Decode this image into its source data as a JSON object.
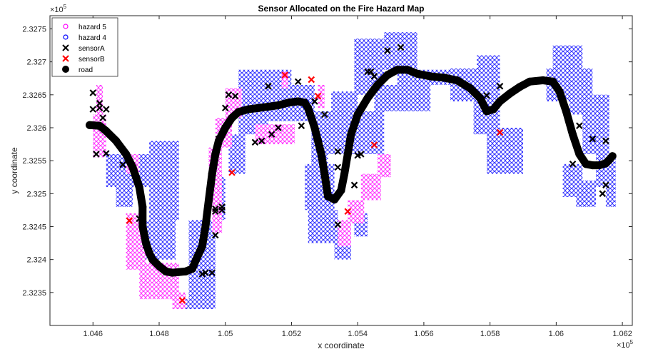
{
  "chart_data": {
    "type": "scatter",
    "title": "Sensor Allocated on the Fire Hazard Map",
    "xlabel": "x coordinate",
    "ylabel": "y coordinate",
    "x_exponent_label": "×10^5",
    "y_exponent_label": "×10^5",
    "xlim": [
      1.0447,
      1.0623
    ],
    "ylim": [
      2.323,
      2.3277
    ],
    "x_ticks": [
      1.046,
      1.048,
      1.05,
      1.052,
      1.054,
      1.056,
      1.058,
      1.06,
      1.062
    ],
    "x_tick_labels": [
      "1.046",
      "1.048",
      "1.05",
      "1.052",
      "1.054",
      "1.056",
      "1.058",
      "1.06",
      "1.062"
    ],
    "y_ticks": [
      2.3235,
      2.324,
      2.3245,
      2.325,
      2.3255,
      2.326,
      2.3265,
      2.327,
      2.3275
    ],
    "y_tick_labels": [
      "2.3235",
      "2.324",
      "2.3245",
      "2.325",
      "2.3255",
      "2.326",
      "2.3265",
      "2.327",
      "2.3275"
    ],
    "grid": false,
    "legend_position": "top-left",
    "colors": {
      "hazard5": "#ff00ff",
      "hazard4": "#0000ff",
      "sensorA": "#000000",
      "sensorB": "#ff0000",
      "road": "#000000"
    },
    "hazard_regions": {
      "hazard5": [
        [
          [
            1.046,
            2.32555
          ],
          [
            1.0464,
            2.3262
          ]
        ],
        [
          [
            1.0461,
            2.3262
          ],
          [
            1.0463,
            2.32665
          ]
        ],
        [
          [
            1.047,
            2.3253
          ],
          [
            1.0474,
            2.3256
          ]
        ],
        [
          [
            1.047,
            2.32385
          ],
          [
            1.0476,
            2.3247
          ]
        ],
        [
          [
            1.0474,
            2.3234
          ],
          [
            1.0486,
            2.32395
          ]
        ],
        [
          [
            1.0484,
            2.32325
          ],
          [
            1.0488,
            2.3235
          ]
        ],
        [
          [
            1.0496,
            2.3244
          ],
          [
            1.0499,
            2.325
          ]
        ],
        [
          [
            1.0495,
            2.325
          ],
          [
            1.0499,
            2.3257
          ]
        ],
        [
          [
            1.0497,
            2.3257
          ],
          [
            1.0502,
            2.32615
          ]
        ],
        [
          [
            1.05,
            2.32615
          ],
          [
            1.0505,
            2.3266
          ]
        ],
        [
          [
            1.0517,
            2.3266
          ],
          [
            1.0519,
            2.32685
          ]
        ],
        [
          [
            1.0528,
            2.3263
          ],
          [
            1.053,
            2.32665
          ]
        ],
        [
          [
            1.0509,
            2.32575
          ],
          [
            1.0521,
            2.32605
          ]
        ],
        [
          [
            1.0546,
            2.32525
          ],
          [
            1.055,
            2.3256
          ]
        ],
        [
          [
            1.0541,
            2.3249
          ],
          [
            1.0547,
            2.3253
          ]
        ],
        [
          [
            1.0537,
            2.32455
          ],
          [
            1.0542,
            2.3249
          ]
        ],
        [
          [
            1.0534,
            2.3242
          ],
          [
            1.0538,
            2.3246
          ]
        ]
      ],
      "hazard4": [
        [
          [
            1.0504,
            2.3259
          ],
          [
            1.0513,
            2.32645
          ]
        ],
        [
          [
            1.0504,
            2.32645
          ],
          [
            1.052,
            2.32688
          ]
        ],
        [
          [
            1.0501,
            2.3253
          ],
          [
            1.0506,
            2.3259
          ]
        ],
        [
          [
            1.0497,
            2.3246
          ],
          [
            1.05,
            2.32525
          ]
        ],
        [
          [
            1.0489,
            2.32325
          ],
          [
            1.0497,
            2.3246
          ]
        ],
        [
          [
            1.0485,
            2.32325
          ],
          [
            1.0489,
            2.3234
          ]
        ],
        [
          [
            1.0477,
            2.3246
          ],
          [
            1.0486,
            2.3258
          ]
        ],
        [
          [
            1.0475,
            2.324
          ],
          [
            1.0485,
            2.3246
          ]
        ],
        [
          [
            1.0464,
            2.3251
          ],
          [
            1.0479,
            2.3256
          ]
        ],
        [
          [
            1.0467,
            2.3248
          ],
          [
            1.0472,
            2.3251
          ]
        ],
        [
          [
            1.0505,
            2.3261
          ],
          [
            1.0521,
            2.3266
          ]
        ],
        [
          [
            1.0519,
            2.3261
          ],
          [
            1.0527,
            2.32665
          ]
        ],
        [
          [
            1.0526,
            2.32545
          ],
          [
            1.0531,
            2.32625
          ]
        ],
        [
          [
            1.0533,
            2.324
          ],
          [
            1.0538,
            2.3244
          ]
        ],
        [
          [
            1.0539,
            2.32435
          ],
          [
            1.0543,
            2.3247
          ]
        ],
        [
          [
            1.0525,
            2.32425
          ],
          [
            1.0534,
            2.32475
          ]
        ],
        [
          [
            1.0524,
            2.32475
          ],
          [
            1.0533,
            2.32545
          ]
        ],
        [
          [
            1.053,
            2.3256
          ],
          [
            1.0548,
            2.32625
          ]
        ],
        [
          [
            1.0545,
            2.32625
          ],
          [
            1.0562,
            2.32665
          ]
        ],
        [
          [
            1.0552,
            2.32665
          ],
          [
            1.0578,
            2.32688
          ]
        ],
        [
          [
            1.0548,
            2.32688
          ],
          [
            1.0558,
            2.32745
          ]
        ],
        [
          [
            1.0539,
            2.3265
          ],
          [
            1.0548,
            2.32735
          ]
        ],
        [
          [
            1.0532,
            2.32615
          ],
          [
            1.054,
            2.32655
          ]
        ],
        [
          [
            1.0568,
            2.3264
          ],
          [
            1.0578,
            2.3269
          ]
        ],
        [
          [
            1.0575,
            2.3259
          ],
          [
            1.0583,
            2.3269
          ]
        ],
        [
          [
            1.0579,
            2.3253
          ],
          [
            1.059,
            2.326
          ]
        ],
        [
          [
            1.0576,
            2.3266
          ],
          [
            1.0583,
            2.3271
          ]
        ],
        [
          [
            1.0597,
            2.3264
          ],
          [
            1.0604,
            2.3269
          ]
        ],
        [
          [
            1.0599,
            2.3269
          ],
          [
            1.0608,
            2.32725
          ]
        ],
        [
          [
            1.0604,
            2.3262
          ],
          [
            1.0611,
            2.3269
          ]
        ],
        [
          [
            1.0608,
            2.3256
          ],
          [
            1.0616,
            2.3265
          ]
        ],
        [
          [
            1.0612,
            2.3251
          ],
          [
            1.0618,
            2.3256
          ]
        ],
        [
          [
            1.0602,
            2.32495
          ],
          [
            1.0608,
            2.32545
          ]
        ],
        [
          [
            1.0606,
            2.3248
          ],
          [
            1.0612,
            2.3252
          ]
        ],
        [
          [
            1.0615,
            2.3248
          ],
          [
            1.0618,
            2.3252
          ]
        ]
      ]
    },
    "series": [
      {
        "name": "hazard 5",
        "marker": "o",
        "color": "#ff00ff"
      },
      {
        "name": "hazard 4",
        "marker": "o",
        "color": "#0000ff"
      },
      {
        "name": "sensorA",
        "marker": "x",
        "color": "#000000",
        "x": [
          1.046,
          1.046,
          1.0461,
          1.0462,
          1.0462,
          1.0463,
          1.0464,
          1.0464,
          1.0469,
          1.0474,
          1.0476,
          1.0493,
          1.0494,
          1.0496,
          1.0497,
          1.0497,
          1.0497,
          1.0499,
          1.0499,
          1.05,
          1.0498,
          1.05,
          1.0503,
          1.0501,
          1.0509,
          1.0511,
          1.0513,
          1.0514,
          1.0516,
          1.0522,
          1.0523,
          1.0527,
          1.053,
          1.0534,
          1.0534,
          1.0534,
          1.0539,
          1.054,
          1.0541,
          1.0543,
          1.0544,
          1.0545,
          1.0549,
          1.0553,
          1.0579,
          1.0583,
          1.0607,
          1.0611,
          1.0614,
          1.0615,
          1.0615,
          1.0605
        ],
        "y": [
          2.32653,
          2.32628,
          2.3256,
          2.3263,
          2.32637,
          2.32615,
          2.32561,
          2.32628,
          2.32544,
          2.32462,
          2.32422,
          2.32378,
          2.3238,
          2.3238,
          2.32437,
          2.32477,
          2.32473,
          2.32475,
          2.3248,
          2.326,
          2.32583,
          2.3263,
          2.32648,
          2.3265,
          2.32578,
          2.3258,
          2.32663,
          2.3259,
          2.326,
          2.3267,
          2.32603,
          2.3264,
          2.3262,
          2.32453,
          2.32564,
          2.3254,
          2.32513,
          2.32558,
          2.3256,
          2.32685,
          2.32685,
          2.32678,
          2.32717,
          2.32722,
          2.32649,
          2.32663,
          2.32603,
          2.32583,
          2.325,
          2.32513,
          2.3258,
          2.32545
        ]
      },
      {
        "name": "sensorB",
        "marker": "x",
        "color": "#ff0000",
        "x": [
          1.0471,
          1.0487,
          1.0502,
          1.0518,
          1.0526,
          1.0528,
          1.0537,
          1.0545,
          1.0583
        ],
        "y": [
          2.32459,
          2.32338,
          2.32532,
          2.3268,
          2.32673,
          2.32648,
          2.32473,
          2.32574,
          2.32593
        ]
      },
      {
        "name": "road",
        "marker": "o",
        "color": "#000000",
        "x": [
          1.0459,
          1.0462,
          1.0464,
          1.0467,
          1.047,
          1.0472,
          1.0474,
          1.0475,
          1.0475,
          1.0476,
          1.0477,
          1.0478,
          1.048,
          1.0482,
          1.0484,
          1.0486,
          1.0488,
          1.049,
          1.0491,
          1.0493,
          1.0494,
          1.0495,
          1.0496,
          1.0497,
          1.0498,
          1.05,
          1.0502,
          1.0504,
          1.0507,
          1.051,
          1.0513,
          1.0516,
          1.0519,
          1.0522,
          1.0524,
          1.0525,
          1.0526,
          1.0527,
          1.0528,
          1.0529,
          1.053,
          1.0531,
          1.0533,
          1.0535,
          1.0536,
          1.0537,
          1.0538,
          1.054,
          1.0543,
          1.0546,
          1.0549,
          1.0552,
          1.0555,
          1.0558,
          1.0562,
          1.0566,
          1.057,
          1.0574,
          1.0577,
          1.0579,
          1.0581,
          1.0583,
          1.0586,
          1.0589,
          1.0592,
          1.0596,
          1.0599,
          1.0601,
          1.0603,
          1.0605,
          1.0607,
          1.0609,
          1.0611,
          1.0613,
          1.0615,
          1.0616,
          1.0617
        ],
        "y": [
          2.32604,
          2.32603,
          2.32595,
          2.3258,
          2.3256,
          2.3254,
          2.3251,
          2.3248,
          2.3245,
          2.32425,
          2.3241,
          2.324,
          2.3239,
          2.32382,
          2.3238,
          2.32381,
          2.32382,
          2.32386,
          2.32398,
          2.3242,
          2.3245,
          2.3249,
          2.3253,
          2.3256,
          2.3258,
          2.326,
          2.32615,
          2.32624,
          2.32628,
          2.3263,
          2.32632,
          2.32634,
          2.32638,
          2.3264,
          2.32638,
          2.3263,
          2.32615,
          2.326,
          2.3258,
          2.3256,
          2.3253,
          2.32496,
          2.32491,
          2.32505,
          2.3253,
          2.3256,
          2.3259,
          2.3262,
          2.32645,
          2.32665,
          2.3268,
          2.32688,
          2.32688,
          2.32682,
          2.32678,
          2.32676,
          2.32672,
          2.3266,
          2.32645,
          2.32625,
          2.32628,
          2.3264,
          2.32652,
          2.32662,
          2.3267,
          2.32672,
          2.3267,
          2.32655,
          2.32625,
          2.3259,
          2.3256,
          2.32545,
          2.32543,
          2.32543,
          2.32546,
          2.32551,
          2.32557
        ]
      }
    ]
  }
}
